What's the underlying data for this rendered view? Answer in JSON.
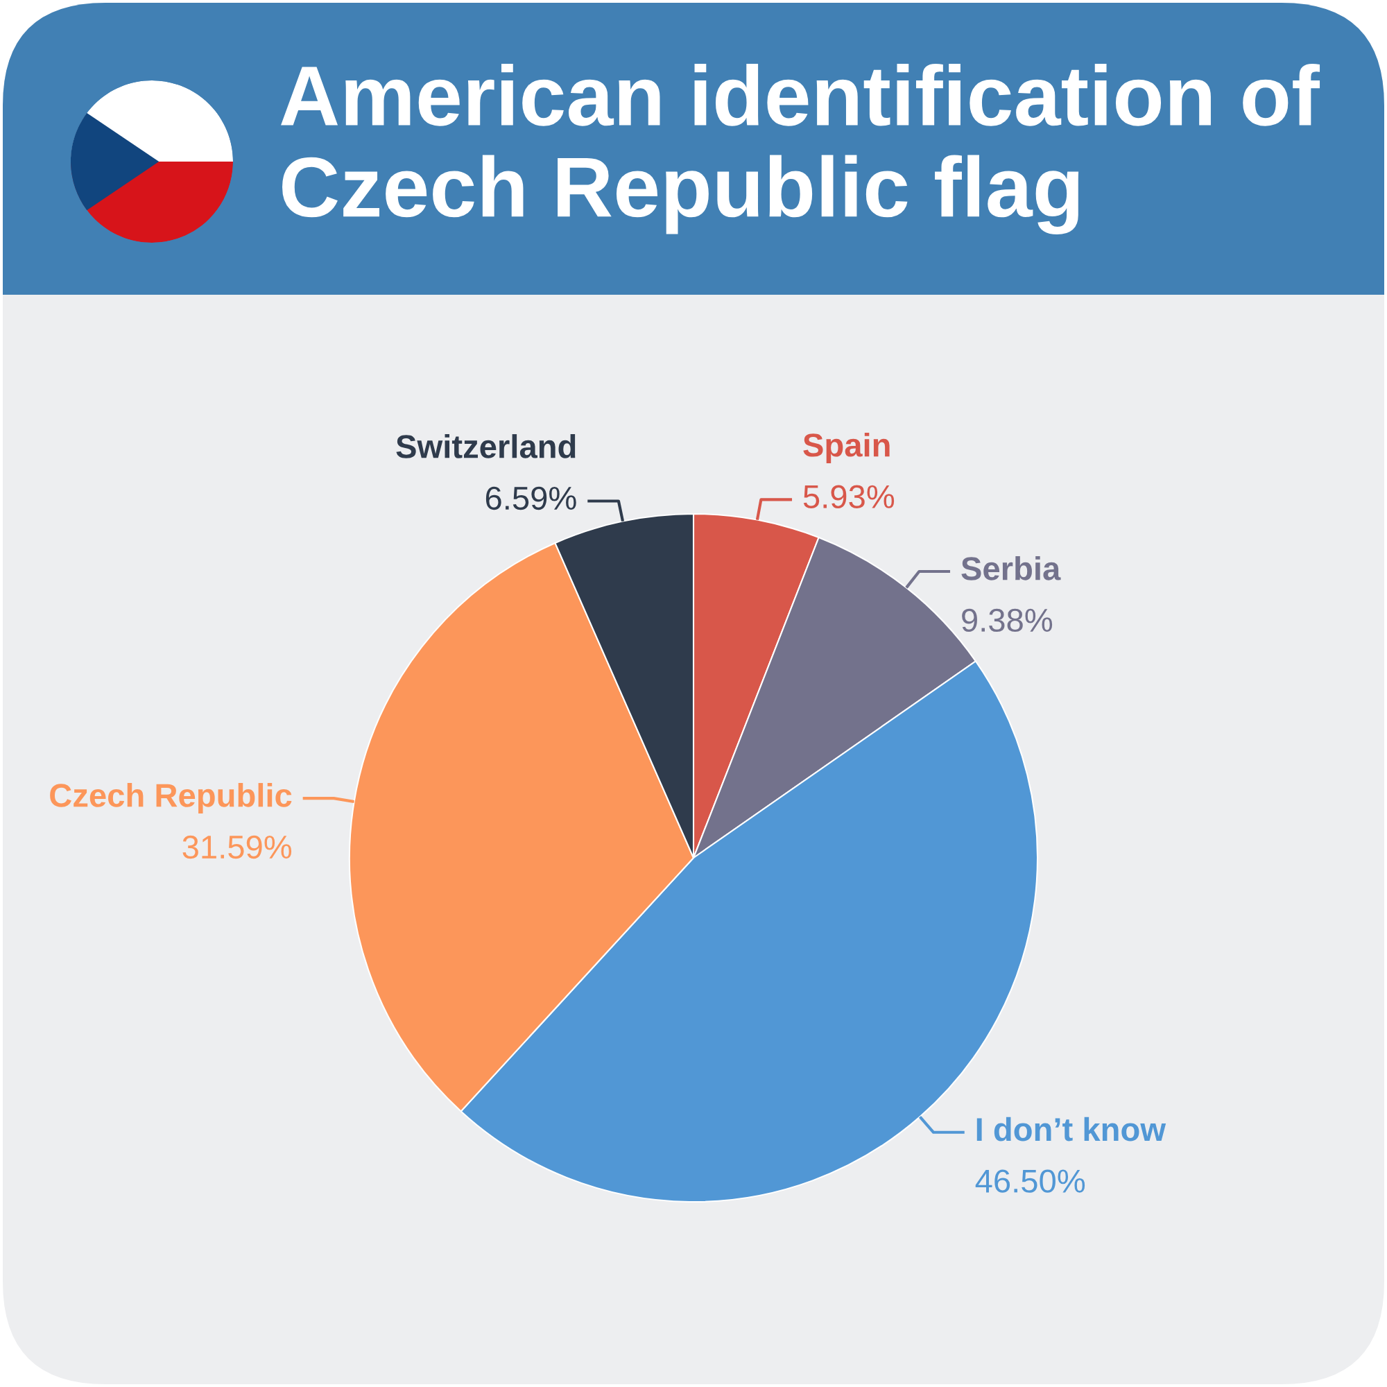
{
  "chart_data": {
    "type": "pie",
    "title": "American identification of Czech Republic flag",
    "categories": [
      "Spain",
      "Serbia",
      "I don’t know",
      "Czech Republic",
      "Switzerland"
    ],
    "values": [
      5.93,
      9.38,
      46.5,
      31.59,
      6.59
    ],
    "colors": [
      "#d8574a",
      "#73728c",
      "#5197d5",
      "#fc965a",
      "#2f3b4c"
    ],
    "value_labels": [
      "5.93%",
      "9.38%",
      "46.50%",
      "31.59%",
      "6.59%"
    ]
  }
}
